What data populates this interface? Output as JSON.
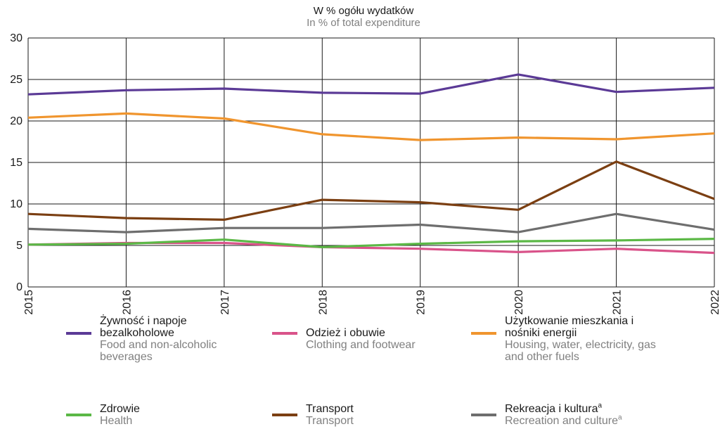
{
  "chart_data": {
    "type": "line",
    "title": "W % ogółu wydatków",
    "subtitle": "In % of total expenditure",
    "x": [
      "2015",
      "2016",
      "2017",
      "2018",
      "2019",
      "2020",
      "2021",
      "2022"
    ],
    "ylim": [
      0,
      30
    ],
    "yticks": [
      0,
      5,
      10,
      15,
      20,
      25,
      30
    ],
    "grid": true,
    "legend_position": "bottom",
    "series": [
      {
        "key": "food",
        "name": "Żywność i napoje bezalkoholowe",
        "name_en": "Food and non-alcoholic beverages",
        "color": "#5b3a96",
        "values": [
          23.2,
          23.7,
          23.9,
          23.4,
          23.3,
          25.6,
          23.5,
          24.0
        ]
      },
      {
        "key": "clothing",
        "name": "Odzież i obuwie",
        "name_en": "Clothing and footwear",
        "color": "#d9538a",
        "values": [
          5.1,
          5.3,
          5.3,
          4.8,
          4.6,
          4.2,
          4.6,
          4.1
        ]
      },
      {
        "key": "housing",
        "name": "Użytkowanie mieszkania i nośniki energii",
        "name_en": "Housing, water, electricity, gas and other fuels",
        "color": "#f0952e",
        "values": [
          20.4,
          20.9,
          20.3,
          18.4,
          17.7,
          18.0,
          17.8,
          18.5
        ]
      },
      {
        "key": "health",
        "name": "Zdrowie",
        "name_en": "Health",
        "color": "#5bb846",
        "values": [
          5.1,
          5.2,
          5.7,
          4.8,
          5.2,
          5.5,
          5.6,
          5.8
        ]
      },
      {
        "key": "transport",
        "name": "Transport",
        "name_en": "Transport",
        "color": "#7b3f12",
        "values": [
          8.8,
          8.3,
          8.1,
          10.5,
          10.2,
          9.3,
          15.1,
          10.6
        ]
      },
      {
        "key": "recreation",
        "name": "Rekreacja i kultura",
        "name_en": "Recreation and culture",
        "note": "a",
        "color": "#6e6e6e",
        "values": [
          7.0,
          6.6,
          7.1,
          7.1,
          7.5,
          6.6,
          8.8,
          6.9
        ]
      }
    ]
  }
}
